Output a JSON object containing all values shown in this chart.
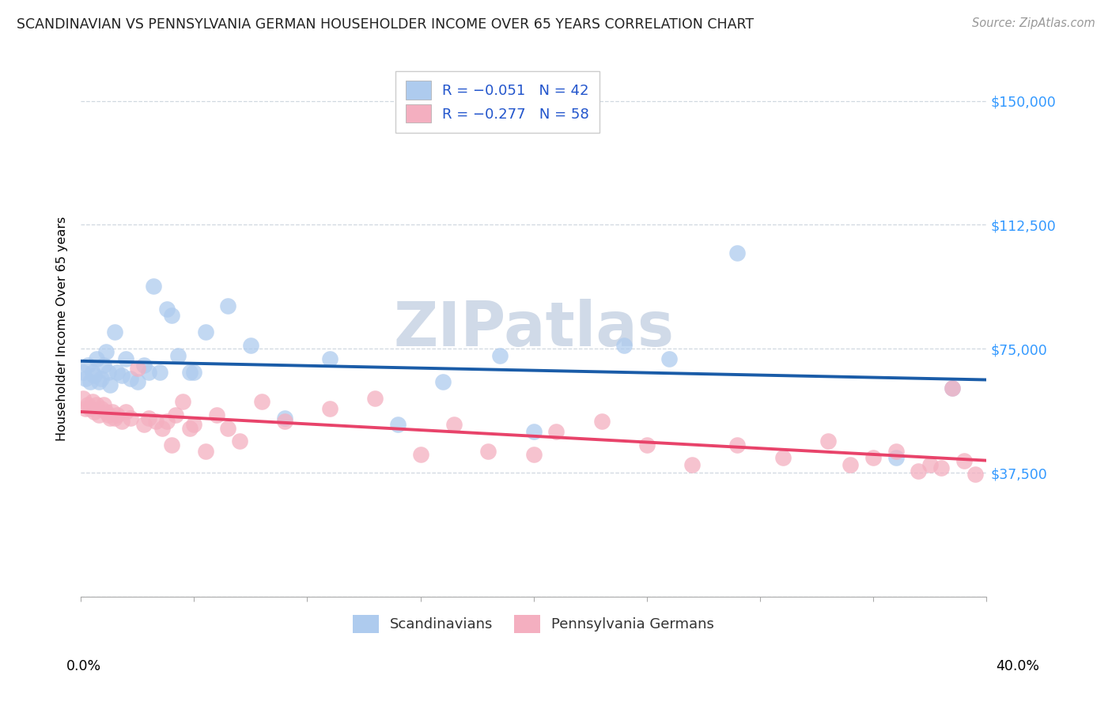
{
  "title": "SCANDINAVIAN VS PENNSYLVANIA GERMAN HOUSEHOLDER INCOME OVER 65 YEARS CORRELATION CHART",
  "source": "Source: ZipAtlas.com",
  "ylabel": "Householder Income Over 65 years",
  "y_ticks": [
    0,
    37500,
    75000,
    112500,
    150000
  ],
  "y_tick_labels": [
    "",
    "$37,500",
    "$75,000",
    "$112,500",
    "$150,000"
  ],
  "x_range": [
    0.0,
    0.4
  ],
  "y_range": [
    0,
    162000
  ],
  "bottom_legend_blue": "Scandinavians",
  "bottom_legend_pink": "Pennsylvania Germans",
  "blue_color": "#aecbee",
  "pink_color": "#f4afc0",
  "blue_line_color": "#1a5ca8",
  "pink_line_color": "#e8436a",
  "watermark_color": "#d0dae8",
  "grid_color": "#d0d8e0",
  "scandinavian_x": [
    0.001,
    0.002,
    0.003,
    0.004,
    0.005,
    0.006,
    0.007,
    0.008,
    0.009,
    0.01,
    0.011,
    0.012,
    0.013,
    0.015,
    0.016,
    0.018,
    0.02,
    0.022,
    0.025,
    0.028,
    0.03,
    0.032,
    0.035,
    0.038,
    0.04,
    0.043,
    0.048,
    0.05,
    0.055,
    0.065,
    0.075,
    0.09,
    0.11,
    0.14,
    0.16,
    0.185,
    0.2,
    0.24,
    0.26,
    0.29,
    0.36,
    0.385
  ],
  "scandinavian_y": [
    68000,
    66000,
    70000,
    65000,
    68000,
    67000,
    72000,
    65000,
    66000,
    70000,
    74000,
    68000,
    64000,
    80000,
    68000,
    67000,
    72000,
    66000,
    65000,
    70000,
    68000,
    94000,
    68000,
    87000,
    85000,
    73000,
    68000,
    68000,
    80000,
    88000,
    76000,
    54000,
    72000,
    52000,
    65000,
    73000,
    50000,
    76000,
    72000,
    104000,
    42000,
    63000
  ],
  "penn_german_x": [
    0.001,
    0.002,
    0.003,
    0.004,
    0.005,
    0.006,
    0.007,
    0.008,
    0.009,
    0.01,
    0.011,
    0.012,
    0.013,
    0.014,
    0.015,
    0.016,
    0.018,
    0.02,
    0.022,
    0.025,
    0.028,
    0.03,
    0.033,
    0.036,
    0.038,
    0.04,
    0.042,
    0.045,
    0.048,
    0.05,
    0.055,
    0.06,
    0.065,
    0.07,
    0.08,
    0.09,
    0.11,
    0.13,
    0.15,
    0.165,
    0.18,
    0.2,
    0.21,
    0.23,
    0.25,
    0.27,
    0.29,
    0.31,
    0.33,
    0.34,
    0.35,
    0.36,
    0.37,
    0.375,
    0.38,
    0.385,
    0.39,
    0.395
  ],
  "penn_german_y": [
    60000,
    57000,
    58000,
    57000,
    59000,
    56000,
    58000,
    55000,
    57000,
    58000,
    56000,
    55000,
    54000,
    56000,
    54000,
    55000,
    53000,
    56000,
    54000,
    69000,
    52000,
    54000,
    53000,
    51000,
    53000,
    46000,
    55000,
    59000,
    51000,
    52000,
    44000,
    55000,
    51000,
    47000,
    59000,
    53000,
    57000,
    60000,
    43000,
    52000,
    44000,
    43000,
    50000,
    53000,
    46000,
    40000,
    46000,
    42000,
    47000,
    40000,
    42000,
    44000,
    38000,
    40000,
    39000,
    63000,
    41000,
    37000
  ]
}
